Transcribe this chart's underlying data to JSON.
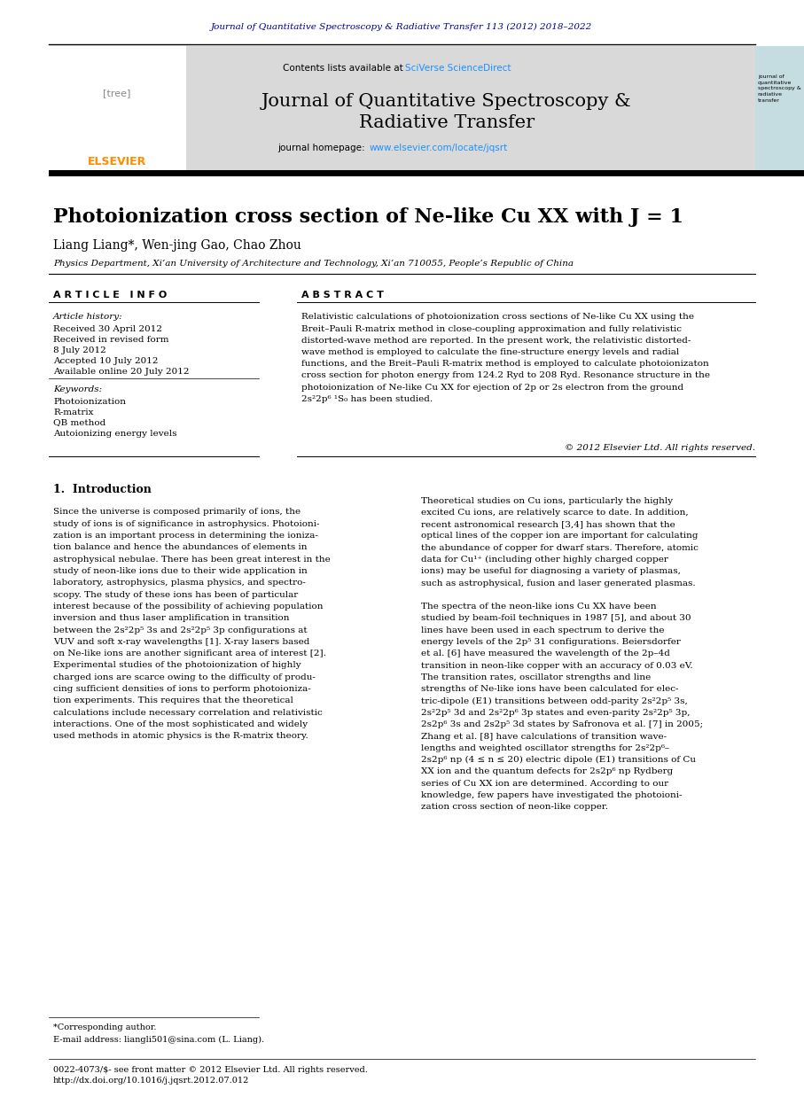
{
  "bg_color": "#ffffff",
  "header_journal_text": "Journal of Quantitative Spectroscopy & Radiative Transfer 113 (2012) 2018–2022",
  "header_journal_color": "#00008B",
  "journal_title_line1": "Journal of Quantitative Spectroscopy &",
  "journal_title_line2": "Radiative Transfer",
  "contents_text": "Contents lists available at",
  "sciverse_text": "SciVerse ScienceDirect",
  "homepage_text": "journal homepage: ",
  "homepage_url": "www.elsevier.com/locate/jqsrt",
  "header_bg_color": "#d9d9d9",
  "side_bg_color": "#c5dde0",
  "paper_title": "Photoionization cross section of Ne-like Cu XX with J = 1",
  "authors": "Liang Liang*, Wen-jing Gao, Chao Zhou",
  "affiliation": "Physics Department, Xi’an University of Architecture and Technology, Xi’an 710055, People’s Republic of China",
  "article_info_header": "A R T I C L E   I N F O",
  "abstract_header": "A B S T R A C T",
  "article_history_label": "Article history:",
  "received1": "Received 30 April 2012",
  "received2": "Received in revised form",
  "received2b": "8 July 2012",
  "accepted": "Accepted 10 July 2012",
  "available": "Available online 20 July 2012",
  "keywords_label": "Keywords:",
  "keyword1": "Photoionization",
  "keyword2": "R-matrix",
  "keyword3": "QB method",
  "keyword4": "Autoionizing energy levels",
  "copyright": "© 2012 Elsevier Ltd. All rights reserved.",
  "intro_header": "1.  Introduction",
  "footnote_star": "*Corresponding author.",
  "footnote_email": "E-mail address: liangli501@sina.com (L. Liang).",
  "footer_issn": "0022-4073/$- see front matter © 2012 Elsevier Ltd. All rights reserved.",
  "footer_doi": "http://dx.doi.org/10.1016/j.jqsrt.2012.07.012",
  "abstract_lines": [
    "Relativistic calculations of photoionization cross sections of Ne-like Cu XX using the",
    "Breit–Pauli R-matrix method in close-coupling approximation and fully relativistic",
    "distorted-wave method are reported. In the present work, the relativistic distorted-",
    "wave method is employed to calculate the fine-structure energy levels and radial",
    "functions, and the Breit–Pauli R-matrix method is employed to calculate photoionizaton",
    "cross section for photon energy from 124.2 Ryd to 208 Ryd. Resonance structure in the",
    "photoionization of Ne-like Cu XX for ejection of 2p or 2s electron from the ground",
    "2s²2p⁶ ¹S₀ has been studied."
  ],
  "intro_col1_lines": [
    "Since the universe is composed primarily of ions, the",
    "study of ions is of significance in astrophysics. Photoioni-",
    "zation is an important process in determining the ioniza-",
    "tion balance and hence the abundances of elements in",
    "astrophysical nebulae. There has been great interest in the",
    "study of neon-like ions due to their wide application in",
    "laboratory, astrophysics, plasma physics, and spectro-",
    "scopy. The study of these ions has been of particular",
    "interest because of the possibility of achieving population",
    "inversion and thus laser amplification in transition",
    "between the 2s²2p⁵ 3s and 2s²2p⁵ 3p configurations at",
    "VUV and soft x-ray wavelengths [1]. X-ray lasers based",
    "on Ne-like ions are another significant area of interest [2].",
    "Experimental studies of the photoionization of highly",
    "charged ions are scarce owing to the difficulty of produ-",
    "cing sufficient densities of ions to perform photoioniza-",
    "tion experiments. This requires that the theoretical",
    "calculations include necessary correlation and relativistic",
    "interactions. One of the most sophisticated and widely",
    "used methods in atomic physics is the R-matrix theory."
  ],
  "intro_col2_lines": [
    "Theoretical studies on Cu ions, particularly the highly",
    "excited Cu ions, are relatively scarce to date. In addition,",
    "recent astronomical research [3,4] has shown that the",
    "optical lines of the copper ion are important for calculating",
    "the abundance of copper for dwarf stars. Therefore, atomic",
    "data for Cu¹⁺ (including other highly charged copper",
    "ions) may be useful for diagnosing a variety of plasmas,",
    "such as astrophysical, fusion and laser generated plasmas.",
    "",
    "The spectra of the neon-like ions Cu XX have been",
    "studied by beam-foil techniques in 1987 [5], and about 30",
    "lines have been used in each spectrum to derive the",
    "energy levels of the 2p⁵ 31 configurations. Beiersdorfer",
    "et al. [6] have measured the wavelength of the 2p–4d",
    "transition in neon-like copper with an accuracy of 0.03 eV.",
    "The transition rates, oscillator strengths and line",
    "strengths of Ne-like ions have been calculated for elec-",
    "tric-dipole (E1) transitions between odd-parity 2s²2p⁵ 3s,",
    "2s²2p⁵ 3d and 2s²2p⁶ 3p states and even-parity 2s²2p⁵ 3p,",
    "2s2p⁶ 3s and 2s2p⁵ 3d states by Safronova et al. [7] in 2005;",
    "Zhang et al. [8] have calculations of transition wave-",
    "lengths and weighted oscillator strengths for 2s²2p⁶–",
    "2s2p⁶ np (4 ≤ n ≤ 20) electric dipole (E1) transitions of Cu",
    "XX ion and the quantum defects for 2s2p⁶ np Rydberg",
    "series of Cu XX ion are determined. According to our",
    "knowledge, few papers have investigated the photoioni-",
    "zation cross section of neon-like copper."
  ]
}
